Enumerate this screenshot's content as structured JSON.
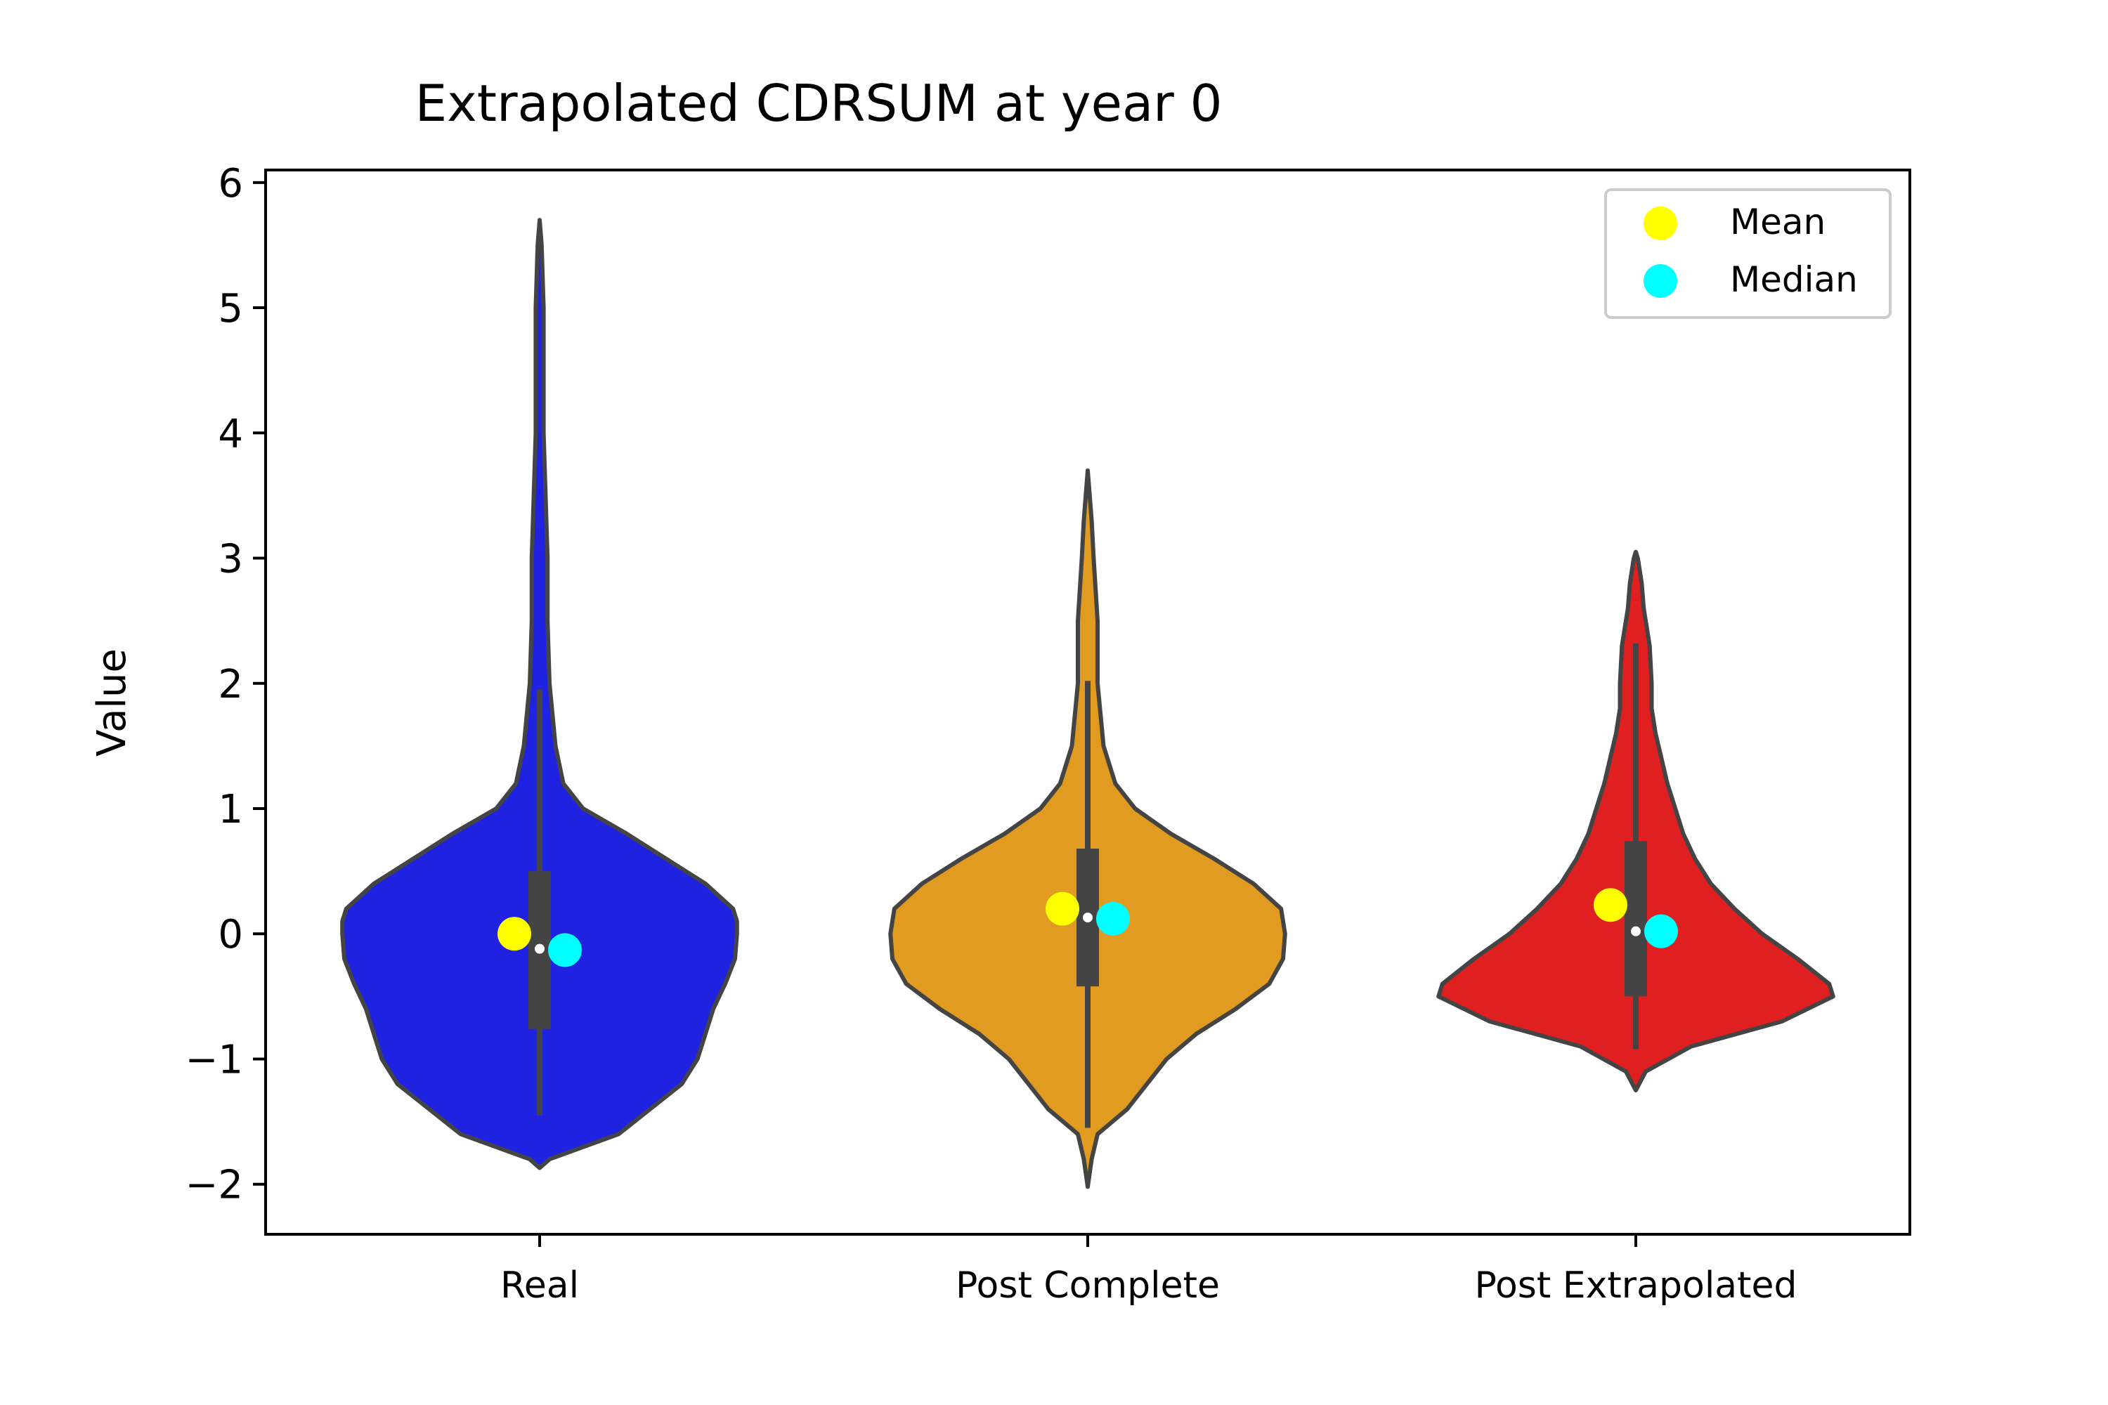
{
  "chart_data": {
    "type": "violin",
    "title": "Extrapolated CDRSUM at year 0",
    "xlabel": "",
    "ylabel": "Value",
    "ylim": [
      -2.4,
      6.1
    ],
    "yticks": [
      -2,
      -1,
      0,
      1,
      2,
      3,
      4,
      5,
      6
    ],
    "ytick_labels": [
      "−2",
      "−1",
      "0",
      "1",
      "2",
      "3",
      "4",
      "5",
      "6"
    ],
    "legend": {
      "position": "upper right",
      "items": [
        {
          "label": "Mean",
          "color": "#ffff00"
        },
        {
          "label": "Median",
          "color": "#00ffff"
        }
      ]
    },
    "categories": [
      "Real",
      "Post Complete",
      "Post Extrapolated"
    ],
    "series": [
      {
        "category": "Real",
        "color": "#1f22e0",
        "mean": 0.0,
        "median": -0.13,
        "box_median": -0.12,
        "q1": -0.76,
        "q3": 0.5,
        "whisker_low": -1.45,
        "whisker_high": 1.95,
        "density_min": -1.87,
        "density_max": 5.7,
        "density": [
          [
            -1.87,
            0.0
          ],
          [
            -1.8,
            0.05
          ],
          [
            -1.6,
            0.4
          ],
          [
            -1.4,
            0.56
          ],
          [
            -1.2,
            0.72
          ],
          [
            -1.0,
            0.8
          ],
          [
            -0.8,
            0.84
          ],
          [
            -0.6,
            0.88
          ],
          [
            -0.4,
            0.94
          ],
          [
            -0.2,
            0.99
          ],
          [
            0.0,
            1.0
          ],
          [
            0.1,
            1.0
          ],
          [
            0.2,
            0.98
          ],
          [
            0.4,
            0.84
          ],
          [
            0.6,
            0.64
          ],
          [
            0.8,
            0.44
          ],
          [
            1.0,
            0.22
          ],
          [
            1.2,
            0.12
          ],
          [
            1.5,
            0.08
          ],
          [
            2.0,
            0.05
          ],
          [
            2.5,
            0.04
          ],
          [
            3.0,
            0.04
          ],
          [
            4.0,
            0.02
          ],
          [
            5.0,
            0.02
          ],
          [
            5.5,
            0.01
          ],
          [
            5.7,
            0.0
          ]
        ]
      },
      {
        "category": "Post Complete",
        "color": "#e09b20",
        "mean": 0.2,
        "median": 0.12,
        "box_median": 0.13,
        "q1": -0.42,
        "q3": 0.68,
        "whisker_low": -1.55,
        "whisker_high": 2.02,
        "density_min": -2.02,
        "density_max": 3.7,
        "density": [
          [
            -2.02,
            0.0
          ],
          [
            -1.8,
            0.02
          ],
          [
            -1.6,
            0.05
          ],
          [
            -1.4,
            0.2
          ],
          [
            -1.2,
            0.3
          ],
          [
            -1.0,
            0.4
          ],
          [
            -0.8,
            0.55
          ],
          [
            -0.6,
            0.75
          ],
          [
            -0.4,
            0.92
          ],
          [
            -0.2,
            0.99
          ],
          [
            0.0,
            1.0
          ],
          [
            0.2,
            0.98
          ],
          [
            0.4,
            0.84
          ],
          [
            0.6,
            0.64
          ],
          [
            0.8,
            0.42
          ],
          [
            1.0,
            0.24
          ],
          [
            1.2,
            0.14
          ],
          [
            1.5,
            0.08
          ],
          [
            2.0,
            0.05
          ],
          [
            2.5,
            0.05
          ],
          [
            3.0,
            0.03
          ],
          [
            3.3,
            0.02
          ],
          [
            3.5,
            0.01
          ],
          [
            3.7,
            0.0
          ]
        ]
      },
      {
        "category": "Post Extrapolated",
        "color": "#e02020",
        "mean": 0.23,
        "median": 0.02,
        "box_median": 0.02,
        "q1": -0.5,
        "q3": 0.74,
        "whisker_low": -0.92,
        "whisker_high": 2.32,
        "density_min": -1.25,
        "density_max": 3.05,
        "density": [
          [
            -1.25,
            0.0
          ],
          [
            -1.1,
            0.05
          ],
          [
            -0.9,
            0.28
          ],
          [
            -0.7,
            0.74
          ],
          [
            -0.5,
            1.0
          ],
          [
            -0.4,
            0.98
          ],
          [
            -0.2,
            0.82
          ],
          [
            0.0,
            0.64
          ],
          [
            0.2,
            0.5
          ],
          [
            0.4,
            0.38
          ],
          [
            0.6,
            0.3
          ],
          [
            0.8,
            0.24
          ],
          [
            1.0,
            0.2
          ],
          [
            1.2,
            0.16
          ],
          [
            1.4,
            0.13
          ],
          [
            1.6,
            0.1
          ],
          [
            1.8,
            0.08
          ],
          [
            2.0,
            0.08
          ],
          [
            2.3,
            0.07
          ],
          [
            2.6,
            0.04
          ],
          [
            2.8,
            0.03
          ],
          [
            3.0,
            0.01
          ],
          [
            3.05,
            0.0
          ]
        ]
      }
    ],
    "grid": false
  }
}
